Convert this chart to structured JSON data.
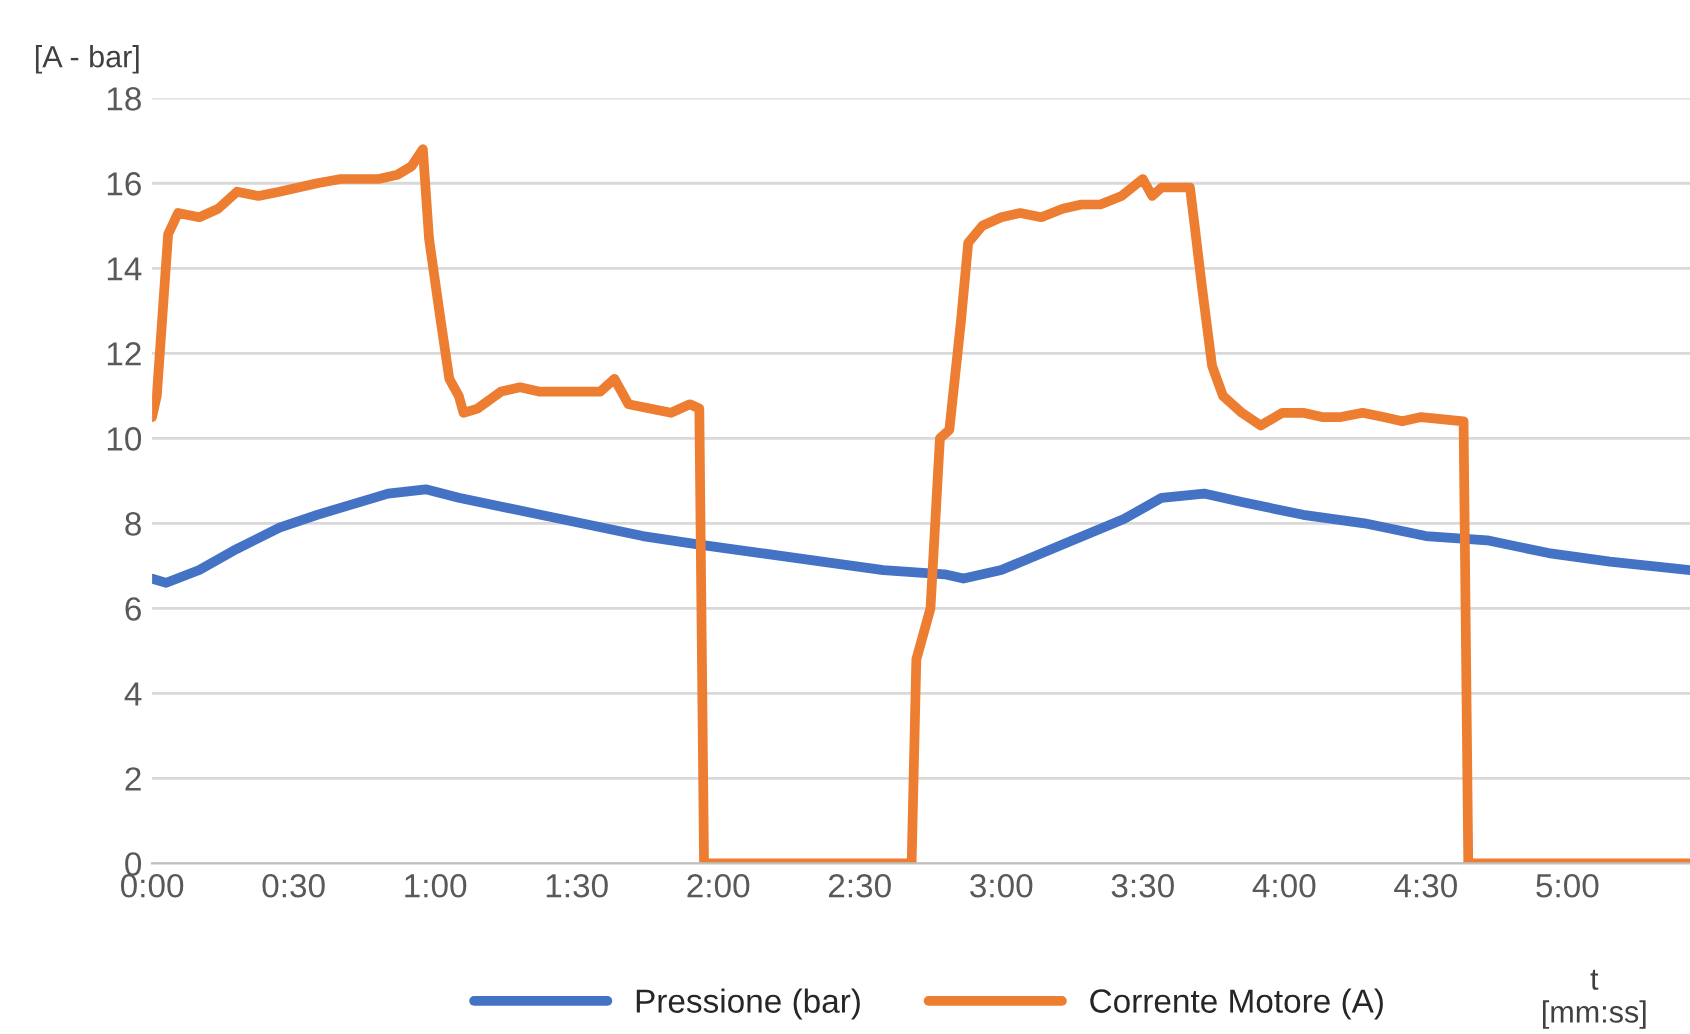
{
  "chart_data": {
    "type": "line",
    "ylabel": "[A - bar]",
    "xlabel": "t\n[mm:ss]",
    "xlim": [
      0,
      326
    ],
    "ylim": [
      0,
      18
    ],
    "yticks": [
      0,
      2,
      4,
      6,
      8,
      10,
      12,
      14,
      16,
      18
    ],
    "xticks": [
      {
        "value": 0,
        "label": "0:00"
      },
      {
        "value": 30,
        "label": "0:30"
      },
      {
        "value": 60,
        "label": "1:00"
      },
      {
        "value": 90,
        "label": "1:30"
      },
      {
        "value": 120,
        "label": "2:00"
      },
      {
        "value": 150,
        "label": "2:30"
      },
      {
        "value": 180,
        "label": "3:00"
      },
      {
        "value": 210,
        "label": "3:30"
      },
      {
        "value": 240,
        "label": "4:00"
      },
      {
        "value": 270,
        "label": "4:30"
      },
      {
        "value": 300,
        "label": "5:00"
      }
    ],
    "grid": "y",
    "legend": "bottom",
    "marker": "none",
    "line_style": "solid",
    "series": [
      {
        "name": "Pressione (bar)",
        "color": "#4472c4",
        "x": [
          0,
          3,
          10,
          18,
          27,
          35,
          44,
          50,
          58,
          65,
          78,
          91,
          104,
          116,
          129,
          142,
          155,
          168,
          172,
          180,
          193,
          206,
          214,
          223,
          231,
          244,
          257,
          270,
          283,
          296,
          309,
          326
        ],
        "values": [
          6.7,
          6.6,
          6.9,
          7.4,
          7.9,
          8.2,
          8.5,
          8.7,
          8.8,
          8.6,
          8.3,
          8.0,
          7.7,
          7.5,
          7.3,
          7.1,
          6.9,
          6.8,
          6.7,
          6.9,
          7.5,
          8.1,
          8.6,
          8.7,
          8.5,
          8.2,
          8.0,
          7.7,
          7.6,
          7.3,
          7.1,
          6.9
        ]
      },
      {
        "name": "Corrente Motore (A)",
        "color": "#ed7d31",
        "x": [
          0,
          1,
          3.4,
          5.5,
          10,
          14,
          18,
          22.5,
          27,
          31,
          35,
          40,
          44,
          48,
          52,
          55,
          57.4,
          58.7,
          61,
          63,
          65,
          66,
          69,
          74,
          78,
          82,
          86,
          91,
          95,
          98,
          101,
          105.5,
          110,
          114,
          116,
          117,
          161,
          162,
          165,
          167,
          169,
          171.5,
          173,
          176,
          180,
          184,
          188.5,
          193,
          197,
          201,
          205.5,
          210,
          212,
          214,
          220,
          221,
          222.5,
          224.7,
          227,
          231,
          235,
          239.6,
          244,
          248,
          252,
          256.6,
          261,
          265,
          269,
          278,
          279,
          326
        ],
        "values": [
          10.5,
          11,
          14.8,
          15.3,
          15.2,
          15.4,
          15.8,
          15.7,
          15.8,
          15.9,
          16.0,
          16.1,
          16.1,
          16.1,
          16.2,
          16.4,
          16.8,
          14.7,
          12.9,
          11.4,
          11.0,
          10.6,
          10.7,
          11.1,
          11.2,
          11.1,
          11.1,
          11.1,
          11.1,
          11.4,
          10.8,
          10.7,
          10.6,
          10.8,
          10.7,
          0,
          0,
          4.8,
          6.0,
          10,
          10.2,
          12.8,
          14.6,
          15.0,
          15.2,
          15.3,
          15.2,
          15.4,
          15.5,
          15.5,
          15.7,
          16.1,
          15.7,
          15.9,
          15.9,
          15.0,
          13.6,
          11.7,
          11.0,
          10.6,
          10.3,
          10.6,
          10.6,
          10.5,
          10.5,
          10.6,
          10.5,
          10.4,
          10.5,
          10.4,
          0,
          0
        ]
      }
    ]
  }
}
